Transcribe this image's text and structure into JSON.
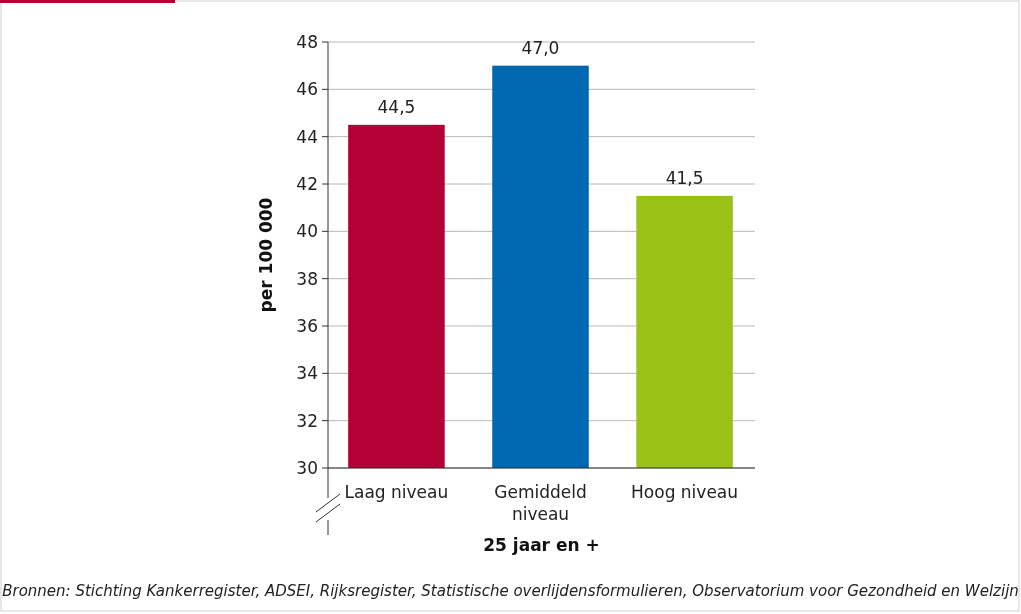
{
  "chart_data": {
    "type": "bar",
    "categories": [
      "Laag niveau",
      "Gemiddeld niveau",
      "Hoog niveau"
    ],
    "values": [
      44.5,
      47.0,
      41.5
    ],
    "colors": [
      "#b40037",
      "#0068b0",
      "#9ac216"
    ],
    "value_labels": [
      "44,5",
      "47,0",
      "41,5"
    ],
    "xlabel": "25 jaar en +",
    "ylabel": "per 100 000",
    "ylim": [
      30,
      48
    ],
    "yticks": [
      30,
      32,
      34,
      36,
      38,
      40,
      42,
      44,
      46,
      48
    ],
    "grid": "y",
    "annotations": [
      "Bronnen: Stichting Kankerregister, ADSEI, Rijksregister, Statistische overlijdensformulieren, Observatorium voor Gezondheid en Welzijn"
    ]
  }
}
